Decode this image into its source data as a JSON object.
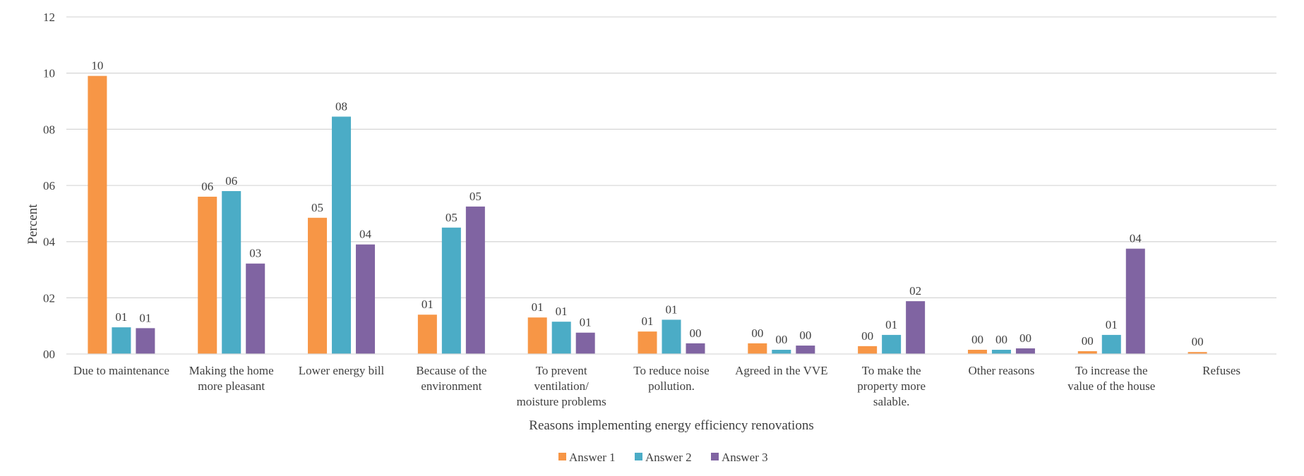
{
  "chart_data": {
    "type": "bar",
    "title": "",
    "xlabel": "Reasons implementing energy efficiency renovations",
    "ylabel": "Percent",
    "ylim": [
      0,
      12
    ],
    "yticks": [
      0,
      2,
      4,
      6,
      8,
      10,
      12
    ],
    "ytick_labels": [
      "00",
      "02",
      "04",
      "06",
      "08",
      "10",
      "12"
    ],
    "grid": true,
    "legend_position": "bottom",
    "categories": [
      [
        "Due to maintenance"
      ],
      [
        "Making the home",
        "more pleasant"
      ],
      [
        "Lower energy bill"
      ],
      [
        "Because of the",
        "environment"
      ],
      [
        "To prevent",
        "ventilation/",
        "moisture problems"
      ],
      [
        "To reduce noise",
        "pollution."
      ],
      [
        "Agreed in the VVE"
      ],
      [
        "To make the",
        "property more",
        "salable."
      ],
      [
        "Other reasons"
      ],
      [
        "To increase the",
        "value of the house"
      ],
      [
        "Refuses"
      ]
    ],
    "series": [
      {
        "name": "Answer 1",
        "color": "#f79646",
        "values": [
          9.9,
          5.6,
          4.85,
          1.4,
          1.3,
          0.8,
          0.38,
          0.28,
          0.15,
          0.1,
          0.07
        ],
        "labels": [
          "10",
          "06",
          "05",
          "01",
          "01",
          "01",
          "00",
          "00",
          "00",
          "00",
          "00"
        ]
      },
      {
        "name": "Answer 2",
        "color": "#4bacc6",
        "values": [
          0.95,
          5.8,
          8.45,
          4.5,
          1.15,
          1.22,
          0.15,
          0.68,
          0.15,
          0.68,
          null
        ],
        "labels": [
          "01",
          "06",
          "08",
          "05",
          "01",
          "01",
          "00",
          "01",
          "00",
          "01",
          ""
        ]
      },
      {
        "name": "Answer 3",
        "color": "#8064a2",
        "values": [
          0.92,
          3.22,
          3.9,
          5.25,
          0.76,
          0.38,
          0.3,
          1.88,
          0.2,
          3.75,
          null
        ],
        "labels": [
          "01",
          "03",
          "04",
          "05",
          "01",
          "00",
          "00",
          "02",
          "00",
          "04",
          ""
        ]
      }
    ]
  }
}
